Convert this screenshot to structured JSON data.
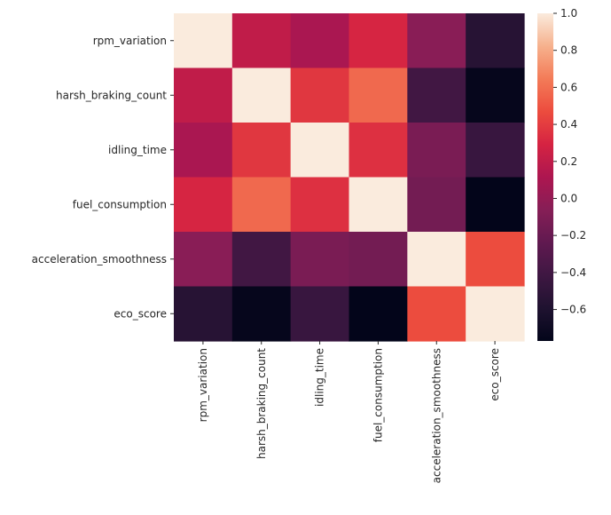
{
  "chart_data": {
    "type": "heatmap",
    "title": "",
    "xlabel": "",
    "ylabel": "",
    "row_labels": [
      "rpm_variation",
      "harsh_braking_count",
      "idling_time",
      "fuel_consumption",
      "acceleration_smoothness",
      "eco_score"
    ],
    "col_labels": [
      "rpm_variation",
      "harsh_braking_count",
      "idling_time",
      "fuel_consumption",
      "acceleration_smoothness",
      "eco_score"
    ],
    "values": [
      [
        1.0,
        0.2,
        0.1,
        0.3,
        -0.05,
        -0.55
      ],
      [
        0.2,
        1.0,
        0.38,
        0.58,
        -0.4,
        -0.75
      ],
      [
        0.1,
        0.38,
        1.0,
        0.35,
        -0.12,
        -0.45
      ],
      [
        0.3,
        0.58,
        0.35,
        1.0,
        -0.15,
        -0.77
      ],
      [
        -0.05,
        -0.4,
        -0.12,
        -0.15,
        1.0,
        0.47
      ],
      [
        -0.55,
        -0.75,
        -0.45,
        -0.77,
        0.47,
        1.0
      ]
    ],
    "colorbar": {
      "min": -0.77,
      "max": 1.0,
      "ticks": [
        -0.6,
        -0.4,
        -0.2,
        0.0,
        0.2,
        0.4,
        0.6,
        0.8,
        1.0
      ],
      "tick_labels": [
        "−0.6",
        "−0.4",
        "−0.2",
        "0.0",
        "0.2",
        "0.4",
        "0.6",
        "0.8",
        "1.0"
      ],
      "colormap": "rocket"
    }
  }
}
